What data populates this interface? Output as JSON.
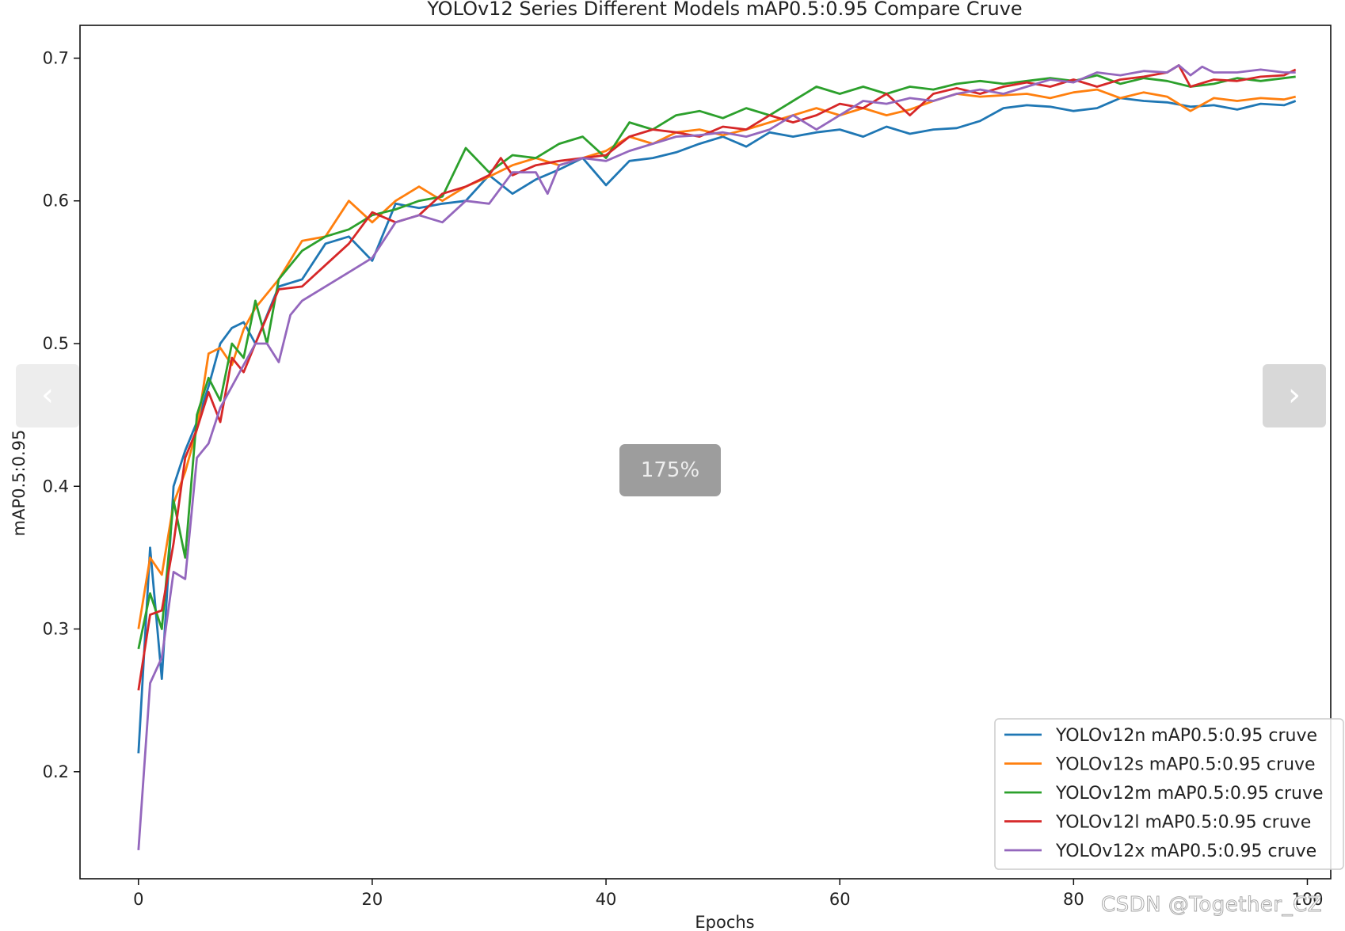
{
  "viewer": {
    "prev_icon": "chevron-left-icon",
    "next_icon": "chevron-right-icon",
    "prev_glyph": "‹",
    "next_glyph": "›",
    "zoom_label": "175%",
    "watermark": "CSDN @Together_CZ"
  },
  "chart_data": {
    "type": "line",
    "title": "YOLOv12 Series Different Models mAP0.5:0.95 Compare Cruve",
    "xlabel": "Epochs",
    "ylabel": "mAP0.5:0.95",
    "xlim": [
      -5,
      102
    ],
    "ylim": [
      0.125,
      0.723
    ],
    "xticks": [
      0,
      20,
      40,
      60,
      80,
      100
    ],
    "xtick_labels": [
      "0",
      "20",
      "40",
      "60",
      "80",
      "100"
    ],
    "yticks": [
      0.2,
      0.3,
      0.4,
      0.5,
      0.6,
      0.7
    ],
    "ytick_labels": [
      "0.2",
      "0.3",
      "0.4",
      "0.5",
      "0.6",
      "0.7"
    ],
    "grid": false,
    "legend_position": "lower-right",
    "series": [
      {
        "name": "YOLOv12n mAP0.5:0.95 cruve",
        "color": "#1f77b4",
        "x": [
          0,
          1,
          2,
          3,
          4,
          5,
          6,
          7,
          8,
          9,
          10,
          12,
          14,
          16,
          18,
          20,
          22,
          24,
          26,
          28,
          30,
          32,
          34,
          36,
          38,
          40,
          42,
          44,
          46,
          48,
          50,
          52,
          54,
          56,
          58,
          60,
          62,
          64,
          66,
          68,
          70,
          72,
          74,
          76,
          78,
          80,
          82,
          84,
          86,
          88,
          90,
          92,
          94,
          96,
          98,
          99
        ],
        "y": [
          0.213,
          0.357,
          0.265,
          0.4,
          0.425,
          0.445,
          0.47,
          0.5,
          0.511,
          0.515,
          0.5,
          0.54,
          0.545,
          0.57,
          0.575,
          0.558,
          0.598,
          0.595,
          0.598,
          0.6,
          0.618,
          0.605,
          0.615,
          0.622,
          0.63,
          0.611,
          0.628,
          0.63,
          0.634,
          0.64,
          0.645,
          0.638,
          0.648,
          0.645,
          0.648,
          0.65,
          0.645,
          0.652,
          0.647,
          0.65,
          0.651,
          0.656,
          0.665,
          0.667,
          0.666,
          0.663,
          0.665,
          0.672,
          0.67,
          0.669,
          0.666,
          0.667,
          0.664,
          0.668,
          0.667,
          0.67
        ]
      },
      {
        "name": "YOLOv12s mAP0.5:0.95 cruve",
        "color": "#ff7f0e",
        "x": [
          0,
          1,
          2,
          3,
          4,
          5,
          6,
          7,
          8,
          9,
          10,
          12,
          14,
          16,
          18,
          20,
          22,
          24,
          26,
          28,
          30,
          32,
          34,
          36,
          38,
          40,
          42,
          44,
          46,
          48,
          50,
          52,
          54,
          56,
          58,
          60,
          62,
          64,
          66,
          68,
          70,
          72,
          74,
          76,
          78,
          80,
          82,
          84,
          86,
          88,
          90,
          92,
          94,
          96,
          98,
          99
        ],
        "y": [
          0.3,
          0.35,
          0.338,
          0.388,
          0.41,
          0.44,
          0.493,
          0.497,
          0.485,
          0.51,
          0.525,
          0.545,
          0.572,
          0.575,
          0.6,
          0.585,
          0.6,
          0.61,
          0.6,
          0.61,
          0.617,
          0.625,
          0.63,
          0.625,
          0.63,
          0.635,
          0.645,
          0.64,
          0.648,
          0.65,
          0.646,
          0.65,
          0.655,
          0.66,
          0.665,
          0.66,
          0.665,
          0.66,
          0.664,
          0.67,
          0.675,
          0.673,
          0.674,
          0.675,
          0.672,
          0.676,
          0.678,
          0.672,
          0.676,
          0.673,
          0.663,
          0.672,
          0.67,
          0.672,
          0.671,
          0.673
        ]
      },
      {
        "name": "YOLOv12m mAP0.5:0.95 cruve",
        "color": "#2ca02c",
        "x": [
          0,
          1,
          2,
          3,
          4,
          5,
          6,
          7,
          8,
          9,
          10,
          11,
          12,
          14,
          16,
          18,
          20,
          22,
          24,
          26,
          28,
          30,
          32,
          34,
          36,
          38,
          40,
          42,
          44,
          46,
          48,
          50,
          52,
          54,
          56,
          58,
          60,
          62,
          64,
          66,
          68,
          70,
          72,
          74,
          76,
          78,
          80,
          82,
          84,
          86,
          88,
          90,
          92,
          94,
          96,
          98,
          99
        ],
        "y": [
          0.286,
          0.325,
          0.3,
          0.39,
          0.35,
          0.45,
          0.476,
          0.46,
          0.5,
          0.49,
          0.53,
          0.5,
          0.545,
          0.565,
          0.575,
          0.58,
          0.59,
          0.594,
          0.6,
          0.603,
          0.637,
          0.62,
          0.632,
          0.63,
          0.64,
          0.645,
          0.63,
          0.655,
          0.65,
          0.66,
          0.663,
          0.658,
          0.665,
          0.66,
          0.67,
          0.68,
          0.675,
          0.68,
          0.675,
          0.68,
          0.678,
          0.682,
          0.684,
          0.682,
          0.684,
          0.686,
          0.684,
          0.688,
          0.682,
          0.686,
          0.684,
          0.68,
          0.682,
          0.686,
          0.684,
          0.686,
          0.687
        ]
      },
      {
        "name": "YOLOv12l mAP0.5:0.95 cruve",
        "color": "#d62728",
        "x": [
          0,
          1,
          2,
          3,
          4,
          5,
          6,
          7,
          8,
          9,
          10,
          12,
          14,
          16,
          18,
          20,
          22,
          24,
          26,
          28,
          30,
          31,
          32,
          34,
          36,
          38,
          40,
          42,
          44,
          46,
          48,
          50,
          52,
          54,
          56,
          58,
          60,
          62,
          64,
          66,
          68,
          70,
          72,
          74,
          76,
          78,
          80,
          82,
          84,
          86,
          88,
          89,
          90,
          92,
          94,
          96,
          98,
          99
        ],
        "y": [
          0.257,
          0.31,
          0.313,
          0.36,
          0.42,
          0.44,
          0.466,
          0.445,
          0.49,
          0.48,
          0.5,
          0.538,
          0.54,
          0.555,
          0.57,
          0.592,
          0.585,
          0.59,
          0.605,
          0.61,
          0.618,
          0.63,
          0.618,
          0.625,
          0.628,
          0.63,
          0.632,
          0.645,
          0.65,
          0.648,
          0.645,
          0.652,
          0.65,
          0.66,
          0.655,
          0.66,
          0.668,
          0.665,
          0.675,
          0.66,
          0.675,
          0.679,
          0.675,
          0.68,
          0.683,
          0.68,
          0.685,
          0.68,
          0.685,
          0.687,
          0.69,
          0.695,
          0.68,
          0.685,
          0.684,
          0.687,
          0.688,
          0.692
        ]
      },
      {
        "name": "YOLOv12x mAP0.5:0.95 cruve",
        "color": "#9467bd",
        "x": [
          0,
          1,
          2,
          3,
          4,
          5,
          6,
          7,
          8,
          9,
          10,
          11,
          12,
          13,
          14,
          16,
          18,
          20,
          22,
          24,
          26,
          28,
          30,
          32,
          34,
          35,
          36,
          38,
          40,
          42,
          44,
          46,
          48,
          50,
          52,
          54,
          56,
          58,
          60,
          62,
          64,
          66,
          68,
          70,
          72,
          74,
          76,
          78,
          80,
          82,
          84,
          86,
          88,
          89,
          90,
          91,
          92,
          94,
          96,
          98,
          99
        ],
        "y": [
          0.145,
          0.262,
          0.28,
          0.34,
          0.335,
          0.42,
          0.43,
          0.455,
          0.47,
          0.485,
          0.5,
          0.5,
          0.487,
          0.52,
          0.53,
          0.54,
          0.55,
          0.56,
          0.585,
          0.59,
          0.585,
          0.6,
          0.598,
          0.62,
          0.62,
          0.605,
          0.625,
          0.63,
          0.628,
          0.635,
          0.64,
          0.645,
          0.646,
          0.648,
          0.645,
          0.65,
          0.66,
          0.65,
          0.66,
          0.67,
          0.668,
          0.672,
          0.67,
          0.675,
          0.678,
          0.675,
          0.68,
          0.685,
          0.683,
          0.69,
          0.688,
          0.691,
          0.69,
          0.695,
          0.688,
          0.694,
          0.69,
          0.69,
          0.692,
          0.69,
          0.69
        ]
      }
    ]
  }
}
